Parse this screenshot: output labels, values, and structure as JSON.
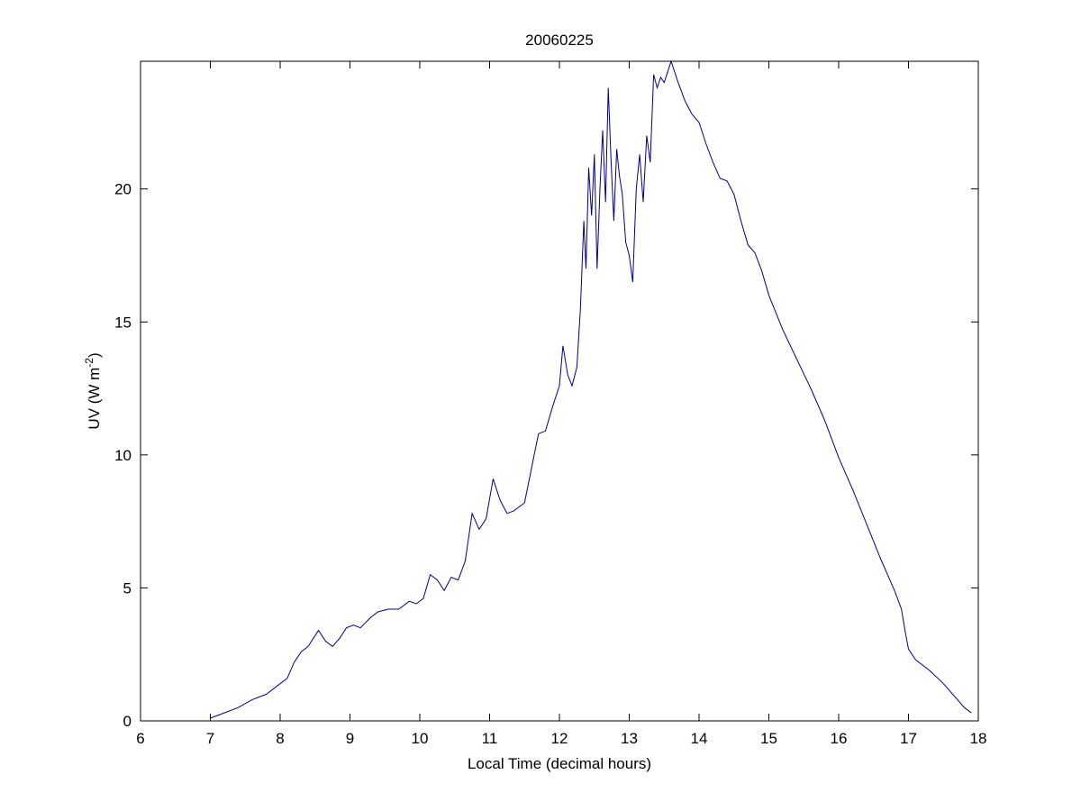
{
  "chart_data": {
    "type": "line",
    "title": "20060225",
    "xlabel": "Local Time (decimal hours)",
    "ylabel": {
      "prefix": "UV (W m",
      "superscript": "-2",
      "suffix": ")"
    },
    "xlim": [
      6,
      18
    ],
    "ylim": [
      0,
      24.8
    ],
    "xticks": [
      6,
      7,
      8,
      9,
      10,
      11,
      12,
      13,
      14,
      15,
      16,
      17,
      18
    ],
    "yticks": [
      0,
      5,
      10,
      15,
      20
    ],
    "grid": false,
    "line_color": "#00008b",
    "series": [
      {
        "x": [
          7.0,
          7.2,
          7.4,
          7.6,
          7.8,
          8.0,
          8.1,
          8.2,
          8.3,
          8.4,
          8.55,
          8.65,
          8.75,
          8.85,
          8.95,
          9.05,
          9.15,
          9.3,
          9.4,
          9.55,
          9.7,
          9.85,
          9.95,
          10.05,
          10.15,
          10.25,
          10.35,
          10.45,
          10.55,
          10.65,
          10.75,
          10.85,
          10.95,
          11.05,
          11.15,
          11.25,
          11.35,
          11.5,
          11.6,
          11.7,
          11.8,
          11.9,
          12.0,
          12.05,
          12.12,
          12.18,
          12.25,
          12.3,
          12.35,
          12.38,
          12.42,
          12.46,
          12.5,
          12.54,
          12.58,
          12.62,
          12.66,
          12.7,
          12.74,
          12.78,
          12.82,
          12.86,
          12.9,
          12.95,
          13.0,
          13.05,
          13.1,
          13.15,
          13.2,
          13.25,
          13.3,
          13.35,
          13.4,
          13.45,
          13.5,
          13.55,
          13.6,
          13.7,
          13.8,
          13.9,
          14.0,
          14.1,
          14.2,
          14.3,
          14.4,
          14.5,
          14.6,
          14.7,
          14.8,
          14.9,
          15.0,
          15.2,
          15.4,
          15.6,
          15.8,
          16.0,
          16.2,
          16.4,
          16.6,
          16.8,
          16.9,
          16.95,
          17.0,
          17.1,
          17.3,
          17.5,
          17.7,
          17.8,
          17.9
        ],
        "y": [
          0.1,
          0.3,
          0.5,
          0.8,
          1.0,
          1.4,
          1.6,
          2.2,
          2.6,
          2.8,
          3.4,
          3.0,
          2.8,
          3.1,
          3.5,
          3.6,
          3.5,
          3.9,
          4.1,
          4.2,
          4.2,
          4.5,
          4.4,
          4.6,
          5.5,
          5.3,
          4.9,
          5.4,
          5.3,
          6.0,
          7.8,
          7.2,
          7.6,
          9.1,
          8.3,
          7.8,
          7.9,
          8.2,
          9.5,
          10.8,
          10.9,
          11.8,
          12.6,
          14.1,
          13.0,
          12.6,
          13.3,
          15.5,
          18.8,
          17.0,
          20.8,
          19.0,
          21.3,
          17.0,
          20.0,
          22.2,
          19.5,
          23.8,
          21.0,
          18.8,
          21.5,
          20.5,
          19.8,
          18.0,
          17.5,
          16.5,
          20.0,
          21.3,
          19.5,
          22.0,
          21.0,
          24.3,
          23.8,
          24.2,
          24.0,
          24.4,
          24.8,
          24.0,
          23.3,
          22.8,
          22.5,
          21.7,
          21.0,
          20.4,
          20.3,
          19.8,
          18.8,
          17.9,
          17.6,
          16.9,
          16.0,
          14.7,
          13.6,
          12.5,
          11.3,
          9.9,
          8.7,
          7.4,
          6.1,
          4.9,
          4.2,
          3.4,
          2.7,
          2.3,
          1.9,
          1.4,
          0.8,
          0.5,
          0.3
        ]
      }
    ]
  }
}
